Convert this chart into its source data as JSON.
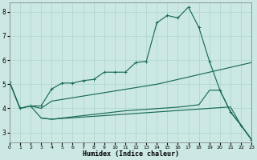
{
  "xlabel": "Humidex (Indice chaleur)",
  "bg_color": "#cce8e4",
  "grid_color": "#aad4cc",
  "line_color": "#1a6b5a",
  "xlim": [
    0,
    23
  ],
  "ylim": [
    2.6,
    8.4
  ],
  "yticks": [
    3,
    4,
    5,
    6,
    7,
    8
  ],
  "xticks": [
    0,
    1,
    2,
    3,
    4,
    5,
    6,
    7,
    8,
    9,
    10,
    11,
    12,
    13,
    14,
    15,
    16,
    17,
    18,
    19,
    20,
    21,
    22,
    23
  ],
  "curve1_x": [
    0,
    1,
    2,
    3,
    4,
    5,
    6,
    7,
    8,
    9,
    10,
    11,
    12,
    13,
    14,
    15,
    16,
    17,
    18,
    19,
    20,
    21,
    22,
    23
  ],
  "curve1_y": [
    5.1,
    4.0,
    4.1,
    4.1,
    4.8,
    5.05,
    5.05,
    5.15,
    5.2,
    5.5,
    5.5,
    5.5,
    5.9,
    5.95,
    7.55,
    7.85,
    7.75,
    8.2,
    7.35,
    5.95,
    4.75,
    3.85,
    3.3,
    2.7
  ],
  "curve2_x": [
    0,
    1,
    2,
    3,
    4,
    5,
    6,
    7,
    8,
    9,
    10,
    11,
    12,
    13,
    14,
    15,
    16,
    17,
    18,
    19,
    20,
    21,
    22,
    23
  ],
  "curve2_y": [
    5.1,
    4.0,
    4.1,
    4.0,
    4.3,
    4.37,
    4.44,
    4.51,
    4.58,
    4.65,
    4.72,
    4.79,
    4.86,
    4.93,
    5.0,
    5.1,
    5.2,
    5.3,
    5.4,
    5.5,
    5.6,
    5.7,
    5.8,
    5.9
  ],
  "curve3_x": [
    0,
    1,
    2,
    3,
    4,
    5,
    6,
    7,
    8,
    9,
    10,
    11,
    12,
    13,
    14,
    15,
    16,
    17,
    18,
    19,
    20,
    21,
    22,
    23
  ],
  "curve3_y": [
    5.1,
    4.0,
    4.1,
    3.6,
    3.55,
    3.6,
    3.65,
    3.7,
    3.75,
    3.8,
    3.85,
    3.9,
    3.93,
    3.96,
    3.99,
    4.02,
    4.05,
    4.1,
    4.15,
    4.75,
    4.75,
    3.85,
    3.3,
    2.7
  ],
  "curve4_x": [
    3,
    4,
    5,
    6,
    7,
    8,
    9,
    10,
    11,
    12,
    13,
    14,
    15,
    16,
    17,
    18,
    19,
    20,
    21,
    22,
    23
  ],
  "curve4_y": [
    3.6,
    3.55,
    3.58,
    3.61,
    3.64,
    3.67,
    3.7,
    3.73,
    3.76,
    3.79,
    3.82,
    3.85,
    3.88,
    3.91,
    3.94,
    3.97,
    4.0,
    4.03,
    4.06,
    3.3,
    2.7
  ]
}
